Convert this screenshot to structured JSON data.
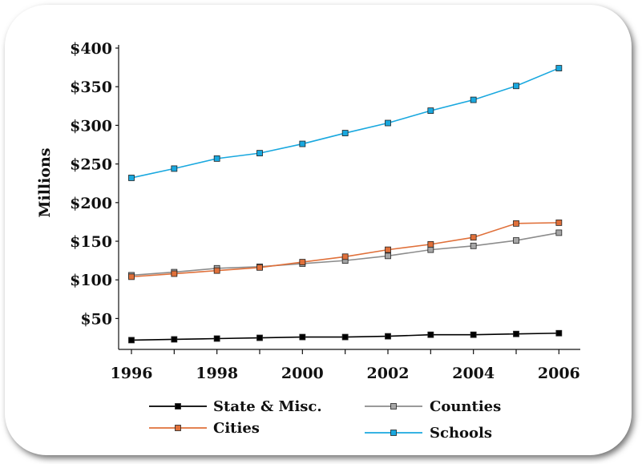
{
  "chart_data": {
    "type": "line",
    "title": "",
    "xlabel": "",
    "ylabel": "Millions",
    "x": [
      1996,
      1997,
      1998,
      1999,
      2000,
      2001,
      2002,
      2003,
      2004,
      2005,
      2006
    ],
    "x_tick_labels": [
      "1996",
      "1998",
      "2000",
      "2002",
      "2004",
      "2006"
    ],
    "x_tick_values": [
      1996,
      1998,
      2000,
      2002,
      2004,
      2006
    ],
    "y_tick_labels": [
      "$50",
      "$100",
      "$150",
      "$200",
      "$250",
      "$300",
      "$350",
      "$400"
    ],
    "y_tick_values": [
      50,
      100,
      150,
      200,
      250,
      300,
      350,
      400
    ],
    "ylim": [
      10,
      400
    ],
    "xlim": [
      1995.7,
      2006.5
    ],
    "grid": false,
    "legend_position": "bottom",
    "series": [
      {
        "name": "State & Misc.",
        "color": "#000000",
        "marker_fill": "#000000",
        "values": [
          22,
          23,
          24,
          25,
          26,
          26,
          27,
          29,
          29,
          30,
          31
        ]
      },
      {
        "name": "Counties",
        "color": "#8c8c8c",
        "marker_fill": "#a6a6a6",
        "values": [
          106,
          110,
          115,
          117,
          121,
          125,
          131,
          139,
          144,
          151,
          161
        ]
      },
      {
        "name": "Cities",
        "color": "#e0703a",
        "marker_fill": "#e0703a",
        "values": [
          104,
          108,
          112,
          116,
          123,
          130,
          139,
          146,
          155,
          173,
          174
        ]
      },
      {
        "name": "Schools",
        "color": "#19a8df",
        "marker_fill": "#19a8df",
        "values": [
          232,
          244,
          257,
          264,
          276,
          290,
          303,
          319,
          333,
          351,
          374
        ]
      }
    ]
  }
}
